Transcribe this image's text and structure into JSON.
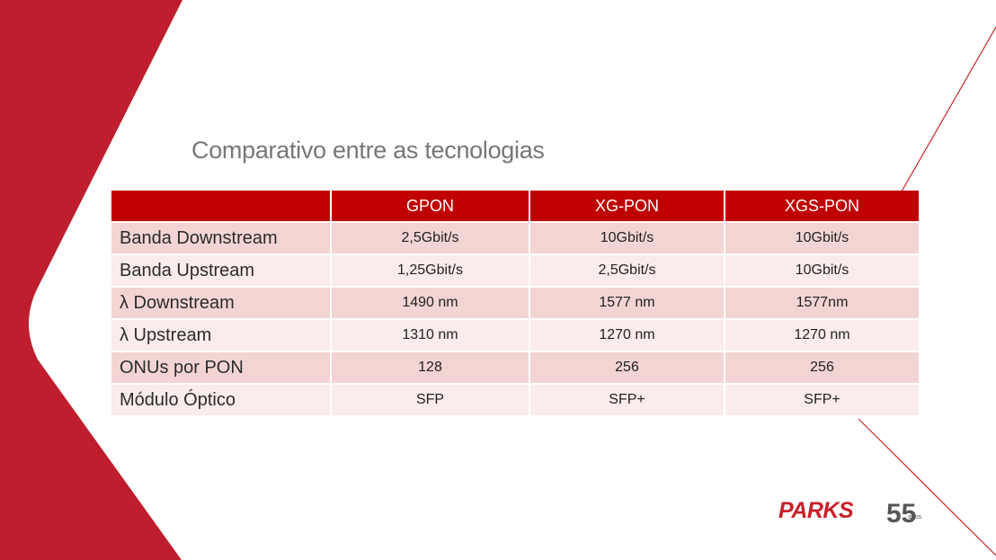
{
  "slide": {
    "title": "Comparativo entre as tecnologias"
  },
  "table": {
    "headers": [
      "",
      "GPON",
      "XG-PON",
      "XGS-PON"
    ],
    "rows": [
      [
        "Banda Downstream",
        "2,5Gbit/s",
        "10Gbit/s",
        "10Gbit/s"
      ],
      [
        "Banda Upstream",
        "1,25Gbit/s",
        "2,5Gbit/s",
        "10Gbit/s"
      ],
      [
        "λ Downstream",
        "1490 nm",
        "1577 nm",
        "1577nm"
      ],
      [
        "λ Upstream",
        "1310 nm",
        "1270 nm",
        "1270 nm"
      ],
      [
        "ONUs por PON",
        "128",
        "256",
        "256"
      ],
      [
        "Módulo Óptico",
        "SFP",
        "SFP+",
        "SFP+"
      ]
    ]
  },
  "logo": {
    "brand": "PARKS",
    "anniversary_number": "55",
    "anniversary_word": "anos"
  },
  "colors": {
    "brand_red": "#c00000",
    "band_red": "#be1e2d",
    "row_dark": "#f2d5d3",
    "row_light": "#faeceb",
    "title_gray": "#777777"
  }
}
